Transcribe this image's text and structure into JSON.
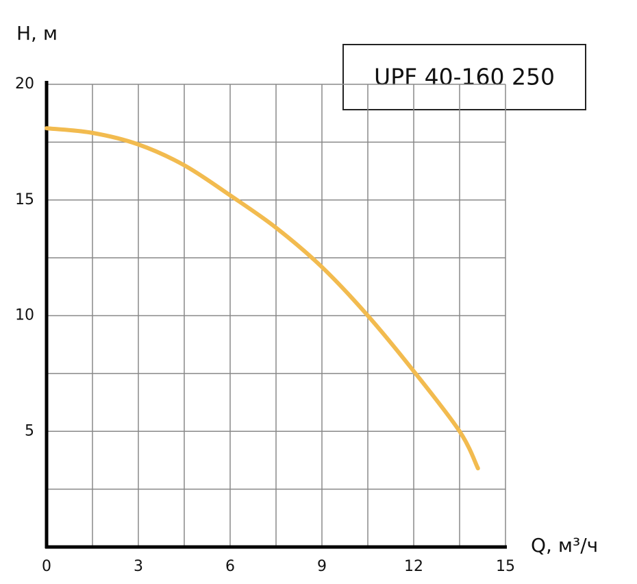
{
  "chart_data": {
    "type": "line",
    "title": "UPF 40-160 250",
    "y_label": "H, м",
    "x_label": "Q, м³/ч",
    "x": [
      0,
      1.5,
      3,
      4.5,
      6,
      7.5,
      9,
      10.5,
      12,
      13.5,
      14.1
    ],
    "series": [
      {
        "name": "UPF 40-160 250",
        "color": "#f2bb4f",
        "values": [
          18.1,
          17.9,
          17.4,
          16.5,
          15.2,
          13.8,
          12.1,
          10.0,
          7.6,
          5.0,
          3.4
        ]
      }
    ],
    "xlim": [
      0,
      15
    ],
    "ylim": [
      0,
      20
    ],
    "xticks": [
      0,
      3,
      6,
      9,
      12,
      15
    ],
    "yticks": [
      5,
      10,
      15,
      20
    ],
    "xgrid": [
      1.5,
      3,
      4.5,
      6,
      7.5,
      9,
      10.5,
      12,
      13.5,
      15
    ],
    "ygrid": [
      2.5,
      5,
      7.5,
      10,
      12.5,
      15,
      17.5,
      20
    ],
    "grid": true
  }
}
